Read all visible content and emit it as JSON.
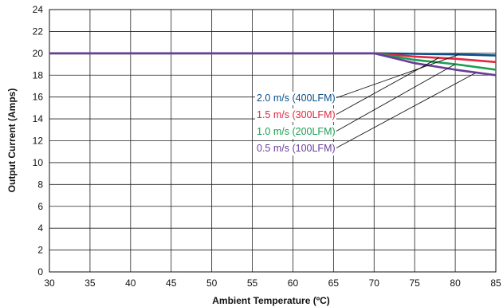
{
  "chart_data": {
    "type": "line",
    "title": "",
    "xlabel": "Ambient Temperature (ºC)",
    "ylabel": "Output Current (Amps)",
    "xlim": [
      30,
      85
    ],
    "ylim": [
      0,
      24
    ],
    "xticks": [
      30,
      35,
      40,
      45,
      50,
      55,
      60,
      65,
      70,
      75,
      80,
      85
    ],
    "yticks": [
      0,
      2,
      4,
      6,
      8,
      10,
      12,
      14,
      16,
      18,
      20,
      22,
      24
    ],
    "grid": true,
    "legend_placement": "center-right, with leader lines to each curve",
    "series": [
      {
        "name": "2.0 m/s (400LFM)",
        "color": "#0b4f8a",
        "x": [
          30,
          70,
          75,
          80,
          85
        ],
        "y": [
          20,
          20,
          19.95,
          19.9,
          19.8
        ],
        "leader_to": [
          80.5,
          19.9
        ]
      },
      {
        "name": "1.5 m/s (300LFM)",
        "color": "#e0283e",
        "x": [
          30,
          70,
          75,
          80,
          85
        ],
        "y": [
          20,
          20,
          19.7,
          19.5,
          19.2
        ],
        "leader_to": [
          78,
          19.6
        ]
      },
      {
        "name": "1.0 m/s (200LFM)",
        "color": "#1b9e52",
        "x": [
          30,
          70,
          75,
          80,
          85
        ],
        "y": [
          20,
          20,
          19.4,
          19,
          18.5
        ],
        "leader_to": [
          80,
          19
        ]
      },
      {
        "name": "0.5 m/s (100LFM)",
        "color": "#6a3d9a",
        "x": [
          30,
          70,
          75,
          80,
          85
        ],
        "y": [
          20,
          20,
          19.1,
          18.5,
          18
        ],
        "leader_to": [
          82.5,
          18.2
        ]
      }
    ]
  }
}
